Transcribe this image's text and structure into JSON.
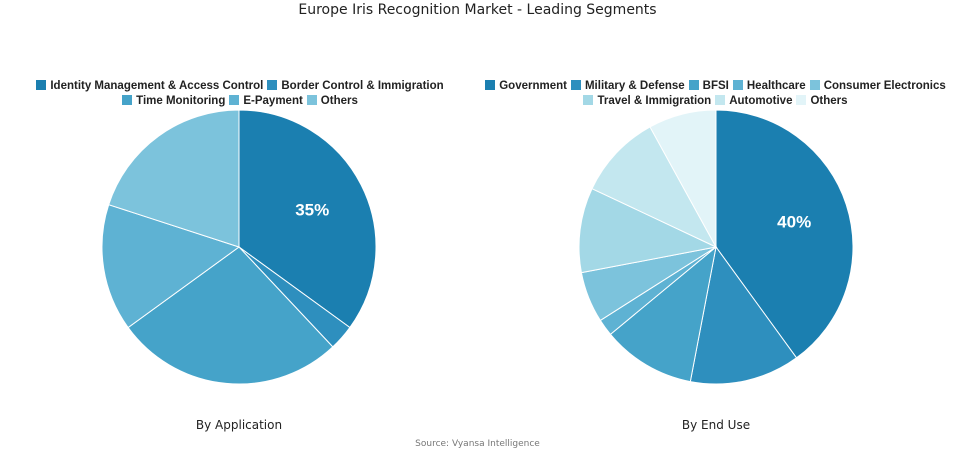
{
  "title": "Europe Iris Recognition Market - Leading Segments",
  "source": "Source: Vyansa Intelligence",
  "chart_data": [
    {
      "type": "pie",
      "title": "By Application",
      "categories": [
        "Identity Management & Access Control",
        "Border Control & Immigration",
        "Time Monitoring",
        "E-Payment",
        "Others"
      ],
      "values": [
        35,
        3,
        27,
        15,
        20
      ],
      "colors": [
        "#1b7fb0",
        "#2e8fbe",
        "#45a3c9",
        "#5eb2d3",
        "#7cc3dc"
      ],
      "labels": [
        "35%",
        "",
        "",
        "",
        ""
      ],
      "legend_position": "top"
    },
    {
      "type": "pie",
      "title": "By End Use",
      "categories": [
        "Government",
        "Military & Defense",
        "BFSI",
        "Healthcare",
        "Consumer Electronics",
        "Travel & Immigration",
        "Automotive",
        "Others"
      ],
      "values": [
        40,
        13,
        11,
        2,
        6,
        10,
        10,
        8
      ],
      "colors": [
        "#1b7fb0",
        "#2e8fbe",
        "#45a3c9",
        "#5eb2d3",
        "#7cc3dc",
        "#a3d8e6",
        "#c3e7ef",
        "#e2f4f8"
      ],
      "labels": [
        "40%",
        "",
        "",
        "",
        "",
        "",
        "",
        ""
      ],
      "legend_position": "top"
    }
  ]
}
